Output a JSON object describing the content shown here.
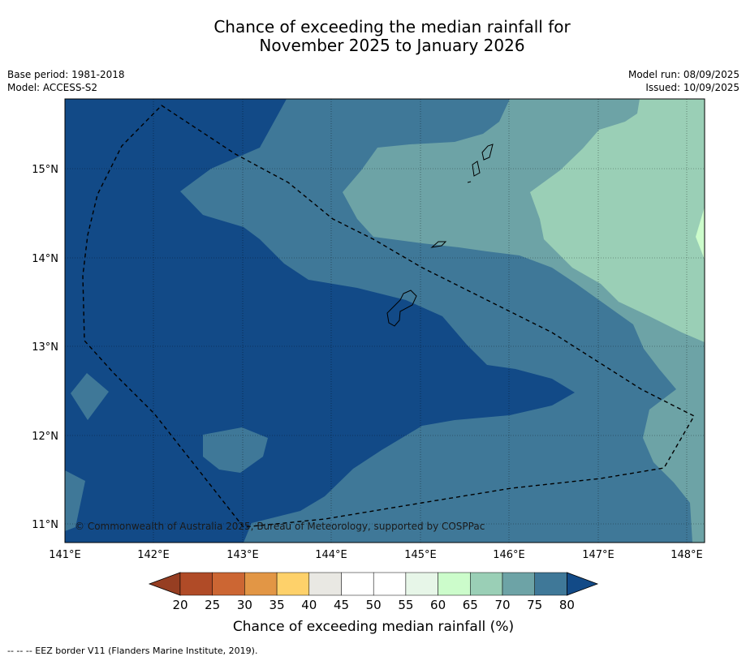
{
  "header": {
    "title_line1": "Chance of exceeding the median rainfall for",
    "title_line2": "November 2025 to January 2026",
    "base_period": "Base period: 1981-2018",
    "model": "Model: ACCESS-S2",
    "model_run": "Model run: 08/09/2025",
    "issued": "Issued: 10/09/2025"
  },
  "map": {
    "lon_labels": [
      "141°E",
      "142°E",
      "143°E",
      "144°E",
      "145°E",
      "146°E",
      "147°E",
      "148°E"
    ],
    "lat_labels": [
      "15°N",
      "14°N",
      "13°N",
      "12°N",
      "11°N"
    ],
    "copyright": "© Commonwealth of Australia 2025, Bureau of Meteorology, supported by COSPPac",
    "colors": {
      "c80": "#124a87",
      "c75": "#3f7898",
      "c70": "#6da3a6",
      "c65": "#9acfb6",
      "c60": "#ccfccb"
    }
  },
  "colorbar": {
    "ticks": [
      "20",
      "25",
      "30",
      "35",
      "40",
      "45",
      "50",
      "55",
      "60",
      "65",
      "70",
      "75",
      "80"
    ],
    "colors": [
      "#b04b27",
      "#cc6633",
      "#e29645",
      "#fed16a",
      "#e9e8e3",
      "#ffffff",
      "#ffffff",
      "#e7f6e8",
      "#ccfccb",
      "#9acfb6",
      "#6da3a6",
      "#3f7898"
    ],
    "under_color": "#963e22",
    "over_color": "#124a87",
    "label": "Chance of exceeding median rainfall (%)"
  },
  "footer": {
    "legend_text": "--  --  -- EEZ border V11 (Flanders Marine Institute, 2019)."
  }
}
